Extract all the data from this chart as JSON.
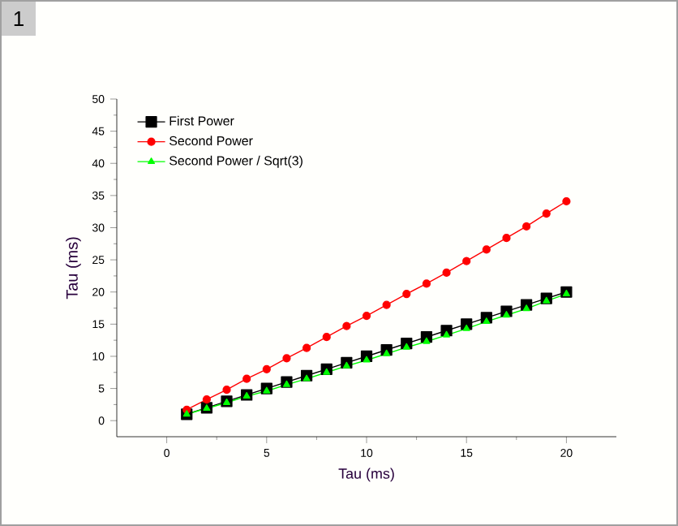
{
  "chart_data": {
    "type": "line",
    "xlabel": "Tau (ms)",
    "ylabel": "Tau (ms)",
    "annotations": [
      "1"
    ],
    "x": [
      1,
      2,
      3,
      4,
      5,
      6,
      7,
      8,
      9,
      10,
      11,
      12,
      13,
      14,
      15,
      16,
      17,
      18,
      19,
      20
    ],
    "series": [
      {
        "name": "First Power",
        "color": "#000000",
        "marker": "square",
        "values": [
          1,
          2,
          3,
          4,
          5,
          6,
          7,
          8,
          9,
          10,
          11,
          12,
          13,
          14,
          15,
          16,
          17,
          18,
          19,
          20
        ]
      },
      {
        "name": "Second Power",
        "color": "#ff0000",
        "marker": "circle",
        "values": [
          1.7,
          3.3,
          4.8,
          6.5,
          8.0,
          9.7,
          11.3,
          13.0,
          14.7,
          16.3,
          18.0,
          19.7,
          21.3,
          23.0,
          24.8,
          26.6,
          28.4,
          30.2,
          32.2,
          34.1
        ]
      },
      {
        "name": "Second Power / Sqrt(3)",
        "color": "#00ff00",
        "marker": "triangle",
        "values": [
          1.0,
          1.9,
          2.8,
          3.8,
          4.6,
          5.6,
          6.5,
          7.5,
          8.5,
          9.4,
          10.4,
          11.4,
          12.3,
          13.3,
          14.3,
          15.4,
          16.4,
          17.4,
          18.6,
          19.7
        ]
      }
    ],
    "xlim": [
      -2.5,
      22.5
    ],
    "ylim": [
      -2.5,
      50
    ],
    "xticks": [
      0,
      5,
      10,
      15,
      20
    ],
    "yticks": [
      0,
      5,
      10,
      15,
      20,
      25,
      30,
      35,
      40,
      45,
      50
    ],
    "grid": false,
    "legend": "top left",
    "line_style": "solid"
  }
}
